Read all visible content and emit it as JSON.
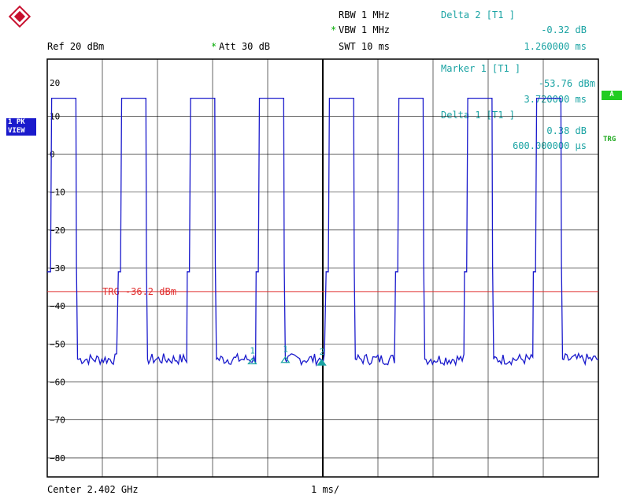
{
  "header": {
    "rbw": "RBW 1 MHz",
    "vbw_mark": "*",
    "vbw": "VBW 1 MHz",
    "swt": "SWT 10 ms",
    "ref": "Ref  20 dBm",
    "att_mark": "*",
    "att": "Att  30 dB"
  },
  "markers": {
    "delta2_title": "Delta 2 [T1 ]",
    "delta2_value": "-0.32 dB",
    "delta2_time": "1.260000 ms",
    "marker1_title": "Marker 1 [T1 ]",
    "marker1_value": "-53.76 dBm",
    "marker1_time": "3.720000 ms",
    "delta1_title": "Delta 1 [T1 ]",
    "delta1_value": "0.38 dB",
    "delta1_time": "600.000000 µs"
  },
  "side": {
    "trace_line1": "1 PK",
    "trace_line2": "VIEW",
    "a_badge": "A",
    "trg_badge": "TRG"
  },
  "footer": {
    "center": "Center 2.402 GHz",
    "span": "1 ms/"
  },
  "colors": {
    "trace": "#1a1acc",
    "trigger": "#e03030",
    "marker": "#1aa3a3",
    "grid": "#000000"
  },
  "chart_data": {
    "type": "line",
    "x_unit": "ms",
    "xlim": [
      0,
      10
    ],
    "ylim": [
      -85,
      25
    ],
    "y_ticks": [
      20,
      10,
      0,
      -10,
      -20,
      -30,
      -40,
      -50,
      -60,
      -70,
      -80
    ],
    "trigger_level": -36.2,
    "trigger_label": "TRG -36.2 dBm",
    "pulse_high": 14.7,
    "pulse_low": -54,
    "shoulder_level": -31,
    "pulses": [
      {
        "start": 0.08,
        "end": 0.52
      },
      {
        "start": 1.35,
        "end": 1.79
      },
      {
        "start": 2.6,
        "end": 3.04
      },
      {
        "start": 3.85,
        "end": 4.29
      },
      {
        "start": 5.12,
        "end": 5.56
      },
      {
        "start": 6.38,
        "end": 6.82
      },
      {
        "start": 7.63,
        "end": 8.07
      },
      {
        "start": 8.88,
        "end": 9.32
      }
    ],
    "marker_points": [
      {
        "label": "1",
        "x": 3.72,
        "y": -53.76
      },
      {
        "label": "1",
        "x": 4.32,
        "y": -53.4
      },
      {
        "label": "2",
        "x": 4.98,
        "y": -54.1
      }
    ]
  }
}
